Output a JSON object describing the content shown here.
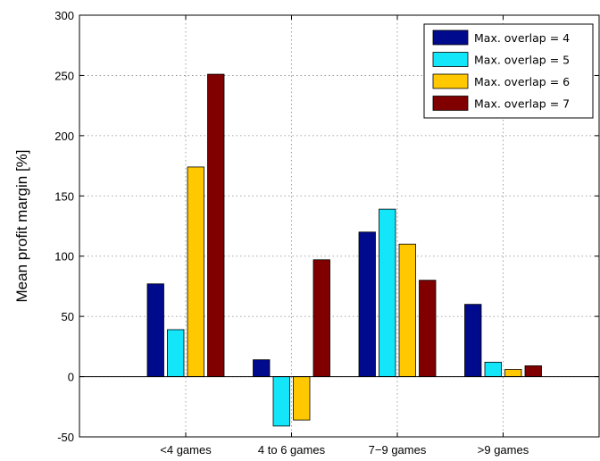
{
  "chart_data": {
    "type": "bar",
    "title": "",
    "xlabel": "",
    "ylabel": "Mean profit margin [%]",
    "ylim": [
      -50,
      300
    ],
    "yticks": [
      -50,
      0,
      50,
      100,
      150,
      200,
      250,
      300
    ],
    "categories": [
      "<4 games",
      "4 to 6 games",
      "7−9 games",
      ">9 games"
    ],
    "grid": true,
    "legend_position": "top-right",
    "series": [
      {
        "name": "Max. overlap = 4",
        "color": "#000a8c",
        "values": [
          77,
          14,
          120,
          60
        ]
      },
      {
        "name": "Max. overlap = 5",
        "color": "#14e6fa",
        "values": [
          39,
          -41,
          139,
          12
        ]
      },
      {
        "name": "Max. overlap = 6",
        "color": "#ffc800",
        "values": [
          174,
          -36,
          110,
          6
        ]
      },
      {
        "name": "Max. overlap = 7",
        "color": "#800000",
        "values": [
          251,
          97,
          80,
          9
        ]
      }
    ]
  }
}
